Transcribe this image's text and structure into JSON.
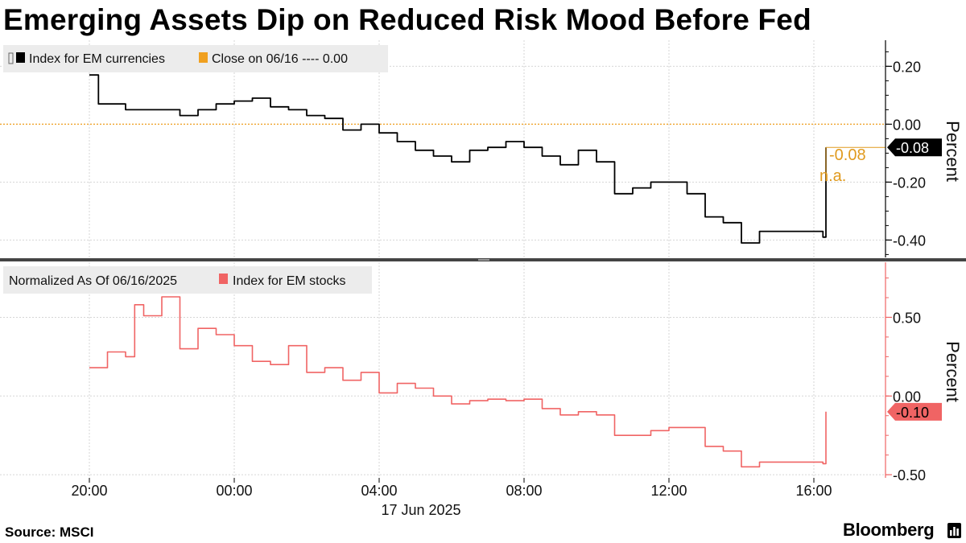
{
  "title": "Emerging Assets Dip on Reduced Risk Mood Before Fed",
  "source": "Source: MSCI",
  "brand": "Bloomberg",
  "chart_data": [
    {
      "type": "line",
      "ylabel": "Percent",
      "ylim": [
        -0.46,
        0.29
      ],
      "yticks": [
        0.2,
        0.0,
        -0.2,
        -0.4
      ],
      "ytick_labels": [
        "0.20",
        "0.00",
        "-0.20",
        "-0.40"
      ],
      "grid": true,
      "legend": {
        "placement": "top-left",
        "entries": [
          "Index for EM currencies",
          "Close on 06/16 ---- 0.00"
        ]
      },
      "reference_line": {
        "name": "Close on 06/16",
        "y": 0.0,
        "color": "#f0a020"
      },
      "last_value_label": "-0.08",
      "annotation": {
        "values": [
          "-0.08",
          "n.a."
        ],
        "color": "#e09a1e"
      },
      "series": [
        {
          "name": "Index for EM currencies",
          "color": "#000000",
          "x": [
            "20:00",
            "20:15",
            "21:00",
            "22:00",
            "22:30",
            "23:00",
            "23:30",
            "00:00",
            "00:30",
            "01:00",
            "01:30",
            "02:00",
            "02:30",
            "03:00",
            "03:30",
            "04:00",
            "04:30",
            "05:00",
            "05:30",
            "06:00",
            "06:30",
            "07:00",
            "07:30",
            "08:00",
            "08:30",
            "09:00",
            "09:30",
            "10:00",
            "10:30",
            "11:00",
            "11:30",
            "12:00",
            "12:30",
            "13:00",
            "13:30",
            "14:00",
            "14:30",
            "15:00",
            "15:30",
            "16:00",
            "16:15",
            "16:20"
          ],
          "values": [
            0.17,
            0.07,
            0.05,
            0.05,
            0.03,
            0.05,
            0.07,
            0.08,
            0.09,
            0.06,
            0.05,
            0.03,
            0.02,
            -0.02,
            0.0,
            -0.03,
            -0.06,
            -0.09,
            -0.11,
            -0.13,
            -0.09,
            -0.08,
            -0.06,
            -0.08,
            -0.11,
            -0.14,
            -0.09,
            -0.13,
            -0.24,
            -0.22,
            -0.2,
            -0.2,
            -0.24,
            -0.32,
            -0.34,
            -0.41,
            -0.37,
            -0.37,
            -0.37,
            -0.37,
            -0.39,
            -0.08
          ]
        }
      ]
    },
    {
      "type": "line",
      "ylabel": "Percent",
      "ylim": [
        -0.52,
        0.85
      ],
      "yticks": [
        0.5,
        0.0,
        -0.5
      ],
      "ytick_labels": [
        "0.50",
        "0.00",
        "-0.50"
      ],
      "grid": true,
      "legend": {
        "placement": "top-left",
        "entries": [
          "Normalized As Of 06/16/2025",
          "Index for EM stocks"
        ]
      },
      "last_value_label": "-0.10",
      "xticks": [
        "20:00",
        "00:00",
        "04:00",
        "08:00",
        "12:00",
        "16:00"
      ],
      "xlabel_date": "17 Jun 2025",
      "series": [
        {
          "name": "Index for EM stocks",
          "color": "#f06464",
          "x": [
            "20:00",
            "20:15",
            "20:30",
            "21:00",
            "21:15",
            "21:30",
            "22:00",
            "22:30",
            "23:00",
            "23:30",
            "00:00",
            "00:30",
            "01:00",
            "01:30",
            "02:00",
            "02:30",
            "03:00",
            "03:30",
            "04:00",
            "04:30",
            "05:00",
            "05:30",
            "06:00",
            "06:30",
            "07:00",
            "07:30",
            "08:00",
            "08:30",
            "09:00",
            "09:30",
            "10:00",
            "10:30",
            "11:00",
            "11:30",
            "12:00",
            "12:30",
            "13:00",
            "13:30",
            "14:00",
            "14:30",
            "15:00",
            "15:30",
            "16:00",
            "16:15",
            "16:20"
          ],
          "values": [
            0.18,
            0.18,
            0.28,
            0.25,
            0.58,
            0.51,
            0.63,
            0.3,
            0.43,
            0.39,
            0.32,
            0.22,
            0.2,
            0.32,
            0.15,
            0.18,
            0.1,
            0.15,
            0.02,
            0.08,
            0.05,
            0.0,
            -0.05,
            -0.03,
            -0.02,
            -0.03,
            -0.02,
            -0.08,
            -0.12,
            -0.1,
            -0.12,
            -0.25,
            -0.25,
            -0.22,
            -0.2,
            -0.2,
            -0.32,
            -0.35,
            -0.45,
            -0.42,
            -0.42,
            -0.42,
            -0.42,
            -0.43,
            -0.1
          ]
        }
      ]
    }
  ]
}
